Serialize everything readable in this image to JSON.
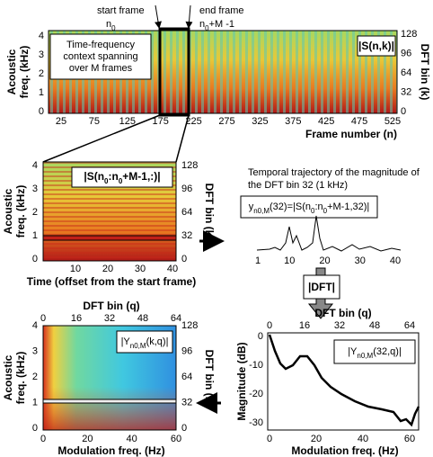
{
  "annotations": {
    "start_frame": "start frame",
    "start_symbol": [
      "n",
      "0"
    ],
    "end_frame": "end frame",
    "end_symbol": [
      "n",
      "0",
      "+M -1"
    ]
  },
  "spectrogram": {
    "context_note": [
      "Time-frequency",
      "context spanning",
      "over M frames"
    ],
    "label": "|S(n,k)|",
    "y_label": [
      "Acoustic",
      "freq. (kHz)"
    ],
    "y_ticks": [
      0,
      1,
      2,
      3,
      4
    ],
    "y2_label": "DFT bin (k)",
    "y2_ticks": [
      0,
      32,
      64,
      96,
      128
    ],
    "x_label": "Frame number (n)",
    "x_ticks": [
      25,
      75,
      125,
      175,
      225,
      275,
      325,
      375,
      425,
      475,
      525
    ]
  },
  "zoom": {
    "label": [
      "|S(n",
      "0",
      ":n",
      "0",
      "+M-1,:)|"
    ],
    "y_label": [
      "Acoustic",
      "freq. (kHz)"
    ],
    "y_ticks": [
      0,
      1,
      2,
      3,
      4
    ],
    "y2_label": "DFT bin (k)",
    "y2_ticks": [
      0,
      32,
      64,
      96,
      128
    ],
    "x_label": "Time (offset from the start frame)",
    "x_ticks": [
      10,
      20,
      30,
      40
    ]
  },
  "trajectory": {
    "description": [
      "Temporal trajectory of the magnitude of",
      "the DFT bin 32 (1 kHz)"
    ],
    "formula": [
      "y",
      "n0,M",
      "(32)=|S(n",
      "0",
      ":n",
      "0",
      "+M-1,32)|"
    ],
    "x_ticks": [
      1,
      10,
      20,
      30,
      40
    ]
  },
  "dft_box": "|DFT|",
  "modulation_spectrum": {
    "label": [
      "|Y",
      "n0,M",
      "(k,q)|"
    ],
    "top_label": "DFT bin (q)",
    "top_ticks": [
      0,
      16,
      32,
      48,
      64
    ],
    "x_label": "Modulation freq. (Hz)",
    "x_ticks": [
      0,
      20,
      40,
      60
    ],
    "y_label": [
      "Acoustic",
      "freq. (kHz)"
    ],
    "y_ticks": [
      0,
      1,
      2,
      3,
      4
    ],
    "y2_label": "DFT bin (k)",
    "y2_ticks": [
      0,
      32,
      64,
      96,
      128
    ]
  },
  "magnitude_plot": {
    "label": [
      "|Y",
      "n0,M",
      "(32,q)|"
    ],
    "top_label": "DFT bin (q)",
    "top_ticks": [
      0,
      16,
      32,
      48,
      64
    ],
    "x_label": "Modulation freq. (Hz)",
    "x_ticks": [
      0,
      20,
      40,
      60
    ],
    "y_label": "Magnitude (dB)",
    "y_ticks": [
      0,
      -10,
      -20,
      -30
    ]
  }
}
